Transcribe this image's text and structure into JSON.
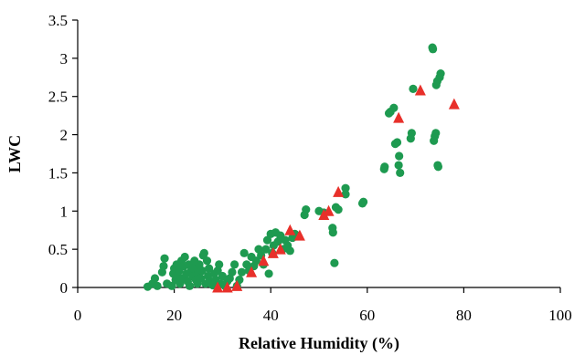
{
  "chart_data": {
    "type": "scatter",
    "xlabel": "Relative Humidity (%)",
    "ylabel": "LWC",
    "xlim": [
      0,
      100
    ],
    "ylim": [
      0,
      3.5
    ],
    "x_ticks": [
      "0",
      "20",
      "40",
      "60",
      "80",
      "100"
    ],
    "y_ticks": [
      "0",
      "0.5",
      "1",
      "1.5",
      "2",
      "2.5",
      "3",
      "3.5"
    ],
    "x_tick_values": [
      0,
      20,
      40,
      60,
      80,
      100
    ],
    "y_tick_values": [
      0,
      0.5,
      1,
      1.5,
      2,
      2.5,
      3,
      3.5
    ],
    "grid": false,
    "legend": "none",
    "series": [
      {
        "marker": "circle",
        "color": "#1e9a50",
        "points": [
          [
            14.5,
            0.01
          ],
          [
            15.5,
            0.05
          ],
          [
            16,
            0.12
          ],
          [
            16.5,
            0.02
          ],
          [
            17.5,
            0.2
          ],
          [
            17.8,
            0.28
          ],
          [
            18,
            0.38
          ],
          [
            18.5,
            0.05
          ],
          [
            19.5,
            0.02
          ],
          [
            19.8,
            0.18
          ],
          [
            20,
            0.25
          ],
          [
            20.3,
            0.1
          ],
          [
            20.5,
            0.3
          ],
          [
            20.8,
            0.15
          ],
          [
            21,
            0.22
          ],
          [
            21.2,
            0.05
          ],
          [
            21.5,
            0.35
          ],
          [
            21.7,
            0.12
          ],
          [
            22,
            0.28
          ],
          [
            22.2,
            0.4
          ],
          [
            22.5,
            0.18
          ],
          [
            22.8,
            0.08
          ],
          [
            23,
            0.3
          ],
          [
            23.2,
            0.02
          ],
          [
            23.5,
            0.22
          ],
          [
            23.8,
            0.15
          ],
          [
            24,
            0.25
          ],
          [
            24.2,
            0.35
          ],
          [
            24.5,
            0.1
          ],
          [
            24.8,
            0.05
          ],
          [
            25,
            0.2
          ],
          [
            25.2,
            0.3
          ],
          [
            25.5,
            0.12
          ],
          [
            25.8,
            0.22
          ],
          [
            26,
            0.42
          ],
          [
            26.2,
            0.45
          ],
          [
            26.5,
            0.05
          ],
          [
            26.8,
            0.35
          ],
          [
            27,
            0.15
          ],
          [
            27.2,
            0.25
          ],
          [
            27.5,
            0.08
          ],
          [
            28,
            0.03
          ],
          [
            28.3,
            0.18
          ],
          [
            28.6,
            0.1
          ],
          [
            29,
            0.22
          ],
          [
            29.3,
            0.3
          ],
          [
            29.6,
            0.05
          ],
          [
            30,
            0.15
          ],
          [
            30.5,
            0.02
          ],
          [
            31,
            0.08
          ],
          [
            31.5,
            0.12
          ],
          [
            32,
            0.2
          ],
          [
            32.5,
            0.3
          ],
          [
            33,
            0.02
          ],
          [
            33.5,
            0.1
          ],
          [
            34,
            0.2
          ],
          [
            34.5,
            0.45
          ],
          [
            35,
            0.3
          ],
          [
            35.5,
            0.22
          ],
          [
            36,
            0.4
          ],
          [
            36.5,
            0.28
          ],
          [
            37,
            0.35
          ],
          [
            37.5,
            0.5
          ],
          [
            38,
            0.42
          ],
          [
            38.5,
            0.3
          ],
          [
            39,
            0.5
          ],
          [
            39.3,
            0.62
          ],
          [
            39.6,
            0.18
          ],
          [
            40,
            0.7
          ],
          [
            40.3,
            0.45
          ],
          [
            40.6,
            0.55
          ],
          [
            41,
            0.72
          ],
          [
            41.5,
            0.6
          ],
          [
            42,
            0.68
          ],
          [
            42.5,
            0.5
          ],
          [
            43,
            0.62
          ],
          [
            43.5,
            0.55
          ],
          [
            44,
            0.48
          ],
          [
            44.5,
            0.65
          ],
          [
            45,
            0.7
          ],
          [
            47,
            0.95
          ],
          [
            47.3,
            1.02
          ],
          [
            50,
            1.0
          ],
          [
            51,
            0.98
          ],
          [
            52.8,
            0.78
          ],
          [
            52.9,
            0.72
          ],
          [
            53.2,
            0.32
          ],
          [
            53.5,
            1.05
          ],
          [
            54,
            1.02
          ],
          [
            55.5,
            1.22
          ],
          [
            55.5,
            1.3
          ],
          [
            59,
            1.1
          ],
          [
            59.2,
            1.12
          ],
          [
            63.5,
            1.55
          ],
          [
            63.6,
            1.58
          ],
          [
            64.5,
            2.28
          ],
          [
            64.8,
            2.3
          ],
          [
            65.5,
            2.35
          ],
          [
            65.8,
            1.88
          ],
          [
            66.2,
            1.9
          ],
          [
            66.5,
            1.6
          ],
          [
            66.6,
            1.72
          ],
          [
            66.8,
            1.5
          ],
          [
            69,
            1.95
          ],
          [
            69.2,
            2.02
          ],
          [
            69.5,
            2.6
          ],
          [
            73.5,
            3.14
          ],
          [
            73.6,
            3.12
          ],
          [
            73.8,
            1.92
          ],
          [
            74,
            1.98
          ],
          [
            74.2,
            2.02
          ],
          [
            74.3,
            2.65
          ],
          [
            74.5,
            2.7
          ],
          [
            74.6,
            1.6
          ],
          [
            74.7,
            1.58
          ],
          [
            75,
            2.75
          ],
          [
            75.2,
            2.8
          ]
        ]
      },
      {
        "marker": "triangle",
        "color": "#e8302a",
        "points": [
          [
            29,
            0.0
          ],
          [
            31,
            0.0
          ],
          [
            33,
            0.02
          ],
          [
            36,
            0.2
          ],
          [
            38.5,
            0.35
          ],
          [
            40.5,
            0.45
          ],
          [
            42,
            0.5
          ],
          [
            44,
            0.75
          ],
          [
            46,
            0.68
          ],
          [
            51,
            0.95
          ],
          [
            52,
            1.0
          ],
          [
            54,
            1.25
          ],
          [
            66.5,
            2.22
          ],
          [
            71,
            2.58
          ],
          [
            78,
            2.4
          ]
        ]
      }
    ]
  }
}
